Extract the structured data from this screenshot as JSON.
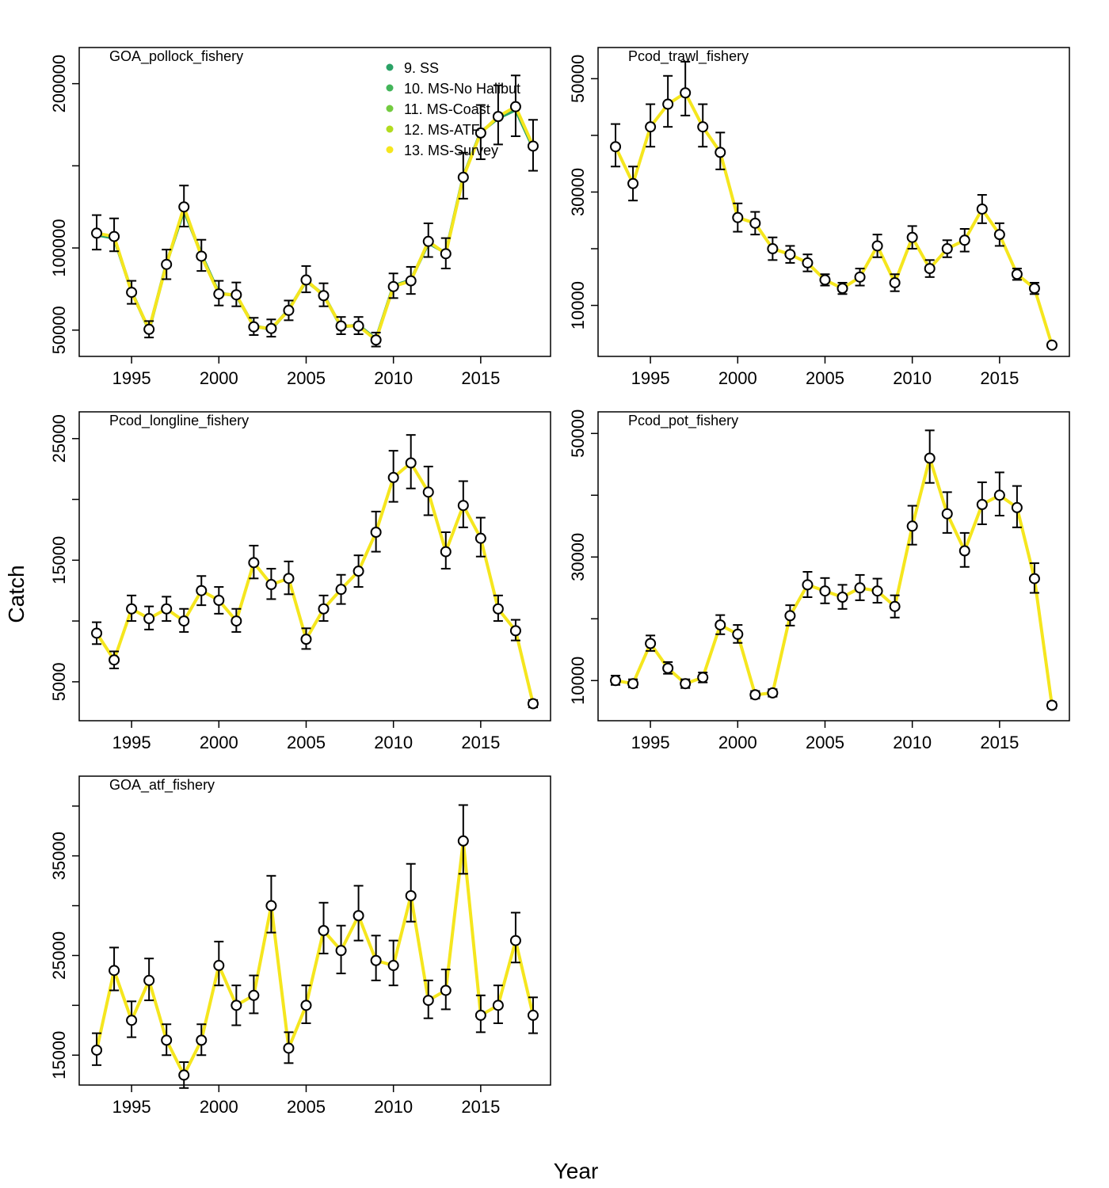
{
  "figure": {
    "xlabel": "Year",
    "ylabel": "Catch"
  },
  "colors": {
    "observed_fill": "#ffffff",
    "observed_stroke": "#000000",
    "error_bar": "#000000",
    "frame": "#000000"
  },
  "legend": {
    "placement": "top-right of first panel",
    "entries": [
      {
        "label": "9. SS",
        "color": "#2AA266"
      },
      {
        "label": "10. MS-No Halibut",
        "color": "#43B55A"
      },
      {
        "label": "11. MS-Coast",
        "color": "#73CB3F"
      },
      {
        "label": "12. MS-ATF",
        "color": "#B2DB1F"
      },
      {
        "label": "13. MS-Survey",
        "color": "#F5E61E"
      }
    ]
  },
  "chart_data": [
    {
      "type": "line",
      "title": "GOA_pollock_fishery",
      "x": [
        1993,
        1994,
        1995,
        1996,
        1997,
        1998,
        1999,
        2000,
        2001,
        2002,
        2003,
        2004,
        2005,
        2006,
        2007,
        2008,
        2009,
        2010,
        2011,
        2012,
        2013,
        2014,
        2015,
        2016,
        2017,
        2018
      ],
      "observed": [
        109000,
        107000,
        73000,
        50500,
        90000,
        125000,
        95000,
        72000,
        71500,
        52000,
        51000,
        62000,
        80500,
        71000,
        52500,
        52500,
        44000,
        76500,
        80000,
        104000,
        96500,
        143000,
        170000,
        180000,
        186000,
        162000
      ],
      "lower": [
        99000,
        98000,
        66000,
        45500,
        81000,
        113000,
        86000,
        65000,
        64500,
        47000,
        46000,
        56000,
        73000,
        64500,
        47500,
        47500,
        40000,
        69500,
        72000,
        94500,
        87500,
        130000,
        154000,
        163000,
        168000,
        147000
      ],
      "upper": [
        120000,
        118000,
        80000,
        55500,
        99000,
        138000,
        105000,
        80000,
        79000,
        57500,
        56500,
        68000,
        89000,
        78500,
        58000,
        58000,
        48500,
        84500,
        88500,
        115000,
        106000,
        158000,
        187000,
        199000,
        205000,
        178000
      ],
      "series": [
        {
          "name": "9. SS",
          "values": [
            108000,
            106000,
            73500,
            50000,
            90500,
            123000,
            96000,
            72500,
            71000,
            52500,
            50500,
            62500,
            80000,
            71500,
            52000,
            53000,
            44500,
            77000,
            80500,
            103000,
            97000,
            143500,
            170500,
            179000,
            184000,
            161000
          ]
        },
        {
          "name": "13. MS-Survey",
          "values": [
            109000,
            107000,
            73000,
            50500,
            90000,
            125000,
            95000,
            72000,
            71500,
            52000,
            51000,
            62000,
            80500,
            71000,
            52500,
            52500,
            44000,
            76500,
            80000,
            104000,
            96500,
            143000,
            170000,
            180000,
            186000,
            162000
          ]
        }
      ],
      "xlim": [
        1992,
        2019
      ],
      "ylim": [
        34000,
        222000
      ],
      "yticks": [
        50000,
        100000,
        150000,
        200000
      ],
      "ytick_labels": [
        "50000",
        "100000",
        "",
        "200000"
      ]
    },
    {
      "type": "line",
      "title": "Pcod_trawl_fishery",
      "x": [
        1993,
        1994,
        1995,
        1996,
        1997,
        1998,
        1999,
        2000,
        2001,
        2002,
        2003,
        2004,
        2005,
        2006,
        2007,
        2008,
        2009,
        2010,
        2011,
        2012,
        2013,
        2014,
        2015,
        2016,
        2017,
        2018
      ],
      "observed": [
        38000,
        31500,
        41500,
        45500,
        47500,
        41500,
        37000,
        25500,
        24500,
        20000,
        19000,
        17500,
        14500,
        13000,
        15000,
        20500,
        14000,
        22000,
        16500,
        20000,
        21500,
        27000,
        22500,
        15500,
        13000,
        3000
      ],
      "lower": [
        34500,
        28500,
        38000,
        41500,
        43500,
        38000,
        34000,
        23000,
        22500,
        18000,
        17500,
        16000,
        13500,
        12000,
        13500,
        18500,
        12500,
        20000,
        15000,
        18500,
        19500,
        24500,
        20500,
        14500,
        12000,
        2800
      ],
      "upper": [
        42000,
        34500,
        45500,
        50500,
        53000,
        45500,
        40500,
        28000,
        26500,
        22000,
        20500,
        19000,
        15500,
        14000,
        16500,
        22500,
        15500,
        24000,
        18000,
        21500,
        23500,
        29500,
        24500,
        16500,
        14000,
        3200
      ],
      "series": [
        {
          "name": "13. MS-Survey",
          "values": [
            38000,
            31500,
            41500,
            45500,
            47500,
            41500,
            37000,
            25500,
            24500,
            20000,
            19000,
            17500,
            14500,
            13000,
            15000,
            20500,
            14000,
            22000,
            16500,
            20000,
            21500,
            27000,
            22500,
            15500,
            13000,
            3000
          ]
        }
      ],
      "xlim": [
        1992,
        2019
      ],
      "ylim": [
        1000,
        55500
      ],
      "yticks": [
        10000,
        20000,
        30000,
        40000,
        50000
      ],
      "ytick_labels": [
        "10000",
        "",
        "30000",
        "",
        "50000"
      ]
    },
    {
      "type": "line",
      "title": "Pcod_longline_fishery",
      "x": [
        1993,
        1994,
        1995,
        1996,
        1997,
        1998,
        1999,
        2000,
        2001,
        2002,
        2003,
        2004,
        2005,
        2006,
        2007,
        2008,
        2009,
        2010,
        2011,
        2012,
        2013,
        2014,
        2015,
        2016,
        2017,
        2018
      ],
      "observed": [
        9000,
        6800,
        11000,
        10200,
        11000,
        10000,
        12500,
        11700,
        10000,
        14800,
        13000,
        13500,
        8500,
        11000,
        12600,
        14100,
        17300,
        21800,
        23000,
        20600,
        15700,
        19500,
        16800,
        11000,
        9200,
        3200
      ],
      "lower": [
        8100,
        6100,
        10000,
        9300,
        10000,
        9100,
        11300,
        10600,
        9100,
        13500,
        11800,
        12200,
        7700,
        10000,
        11400,
        12800,
        15700,
        19800,
        20900,
        18700,
        14300,
        17700,
        15300,
        10000,
        8400,
        2900
      ],
      "upper": [
        9900,
        7500,
        12100,
        11200,
        12000,
        11000,
        13700,
        12800,
        11000,
        16200,
        14300,
        14900,
        9400,
        12100,
        13800,
        15400,
        19000,
        24000,
        25300,
        22700,
        17300,
        21500,
        18500,
        12100,
        10100,
        3500
      ],
      "series": [
        {
          "name": "13. MS-Survey",
          "values": [
            9000,
            6800,
            11000,
            10200,
            11000,
            10000,
            12500,
            11700,
            10000,
            14800,
            13000,
            13500,
            8500,
            11000,
            12600,
            14100,
            17300,
            21800,
            23000,
            20600,
            15700,
            19500,
            16800,
            11000,
            9200,
            3200
          ]
        }
      ],
      "xlim": [
        1992,
        2019
      ],
      "ylim": [
        1800,
        27200
      ],
      "yticks": [
        5000,
        10000,
        15000,
        20000,
        25000
      ],
      "ytick_labels": [
        "5000",
        "",
        "15000",
        "",
        "25000"
      ]
    },
    {
      "type": "line",
      "title": "Pcod_pot_fishery",
      "x": [
        1993,
        1994,
        1995,
        1996,
        1997,
        1998,
        1999,
        2000,
        2001,
        2002,
        2003,
        2004,
        2005,
        2006,
        2007,
        2008,
        2009,
        2010,
        2011,
        2012,
        2013,
        2014,
        2015,
        2016,
        2017,
        2018
      ],
      "observed": [
        10000,
        9500,
        16000,
        12000,
        9500,
        10500,
        19000,
        17500,
        7700,
        8000,
        20500,
        25500,
        24500,
        23500,
        25000,
        24500,
        22000,
        35000,
        46000,
        37000,
        31000,
        38500,
        40000,
        38000,
        26500,
        6000
      ],
      "lower": [
        9300,
        8900,
        14800,
        11100,
        8800,
        9700,
        17500,
        16100,
        7100,
        7400,
        18900,
        23500,
        22500,
        21600,
        23000,
        22600,
        20200,
        32000,
        42000,
        33900,
        28400,
        35300,
        36700,
        34800,
        24200,
        5500
      ],
      "upper": [
        10800,
        10200,
        17300,
        13000,
        10200,
        11300,
        20600,
        19000,
        8300,
        8600,
        22200,
        27600,
        26600,
        25500,
        27100,
        26500,
        23800,
        38300,
        50500,
        40500,
        33900,
        42100,
        43700,
        41500,
        29000,
        6500
      ],
      "series": [
        {
          "name": "13. MS-Survey",
          "values": [
            10000,
            9500,
            16000,
            12000,
            9500,
            10500,
            19000,
            17500,
            7700,
            8000,
            20500,
            25500,
            24500,
            23500,
            25000,
            24500,
            22000,
            35000,
            46000,
            37000,
            31000,
            38500,
            40000,
            38000,
            26500,
            6000
          ]
        }
      ],
      "xlim": [
        1992,
        2019
      ],
      "ylim": [
        3500,
        53500
      ],
      "yticks": [
        10000,
        20000,
        30000,
        40000,
        50000
      ],
      "ytick_labels": [
        "10000",
        "",
        "30000",
        "",
        "50000"
      ]
    },
    {
      "type": "line",
      "title": "GOA_atf_fishery",
      "x": [
        1993,
        1994,
        1995,
        1996,
        1997,
        1998,
        1999,
        2000,
        2001,
        2002,
        2003,
        2004,
        2005,
        2006,
        2007,
        2008,
        2009,
        2010,
        2011,
        2012,
        2013,
        2014,
        2015,
        2016,
        2017,
        2018
      ],
      "observed": [
        15500,
        23500,
        18500,
        22500,
        16500,
        13000,
        16500,
        24000,
        20000,
        21000,
        30000,
        15700,
        20000,
        27500,
        25500,
        29000,
        24500,
        24000,
        31000,
        20500,
        21500,
        36500,
        19000,
        20000,
        26500,
        19000
      ],
      "lower": [
        14000,
        21500,
        16800,
        20500,
        15000,
        11700,
        15000,
        22000,
        18000,
        19200,
        27300,
        14200,
        18200,
        25200,
        23200,
        26500,
        22500,
        22000,
        28400,
        18700,
        19600,
        33200,
        17300,
        18200,
        24300,
        17200
      ],
      "upper": [
        17200,
        25800,
        20400,
        24700,
        18100,
        14300,
        18100,
        26400,
        22000,
        23000,
        33000,
        17300,
        22000,
        30300,
        28000,
        32000,
        27000,
        26500,
        34200,
        22500,
        23600,
        40100,
        21000,
        22000,
        29300,
        20800
      ],
      "series": [
        {
          "name": "13. MS-Survey",
          "values": [
            15500,
            23500,
            18500,
            22500,
            16500,
            13000,
            16500,
            24000,
            20000,
            21000,
            30000,
            15700,
            20000,
            27500,
            25500,
            29000,
            24500,
            24000,
            31000,
            20500,
            21500,
            36500,
            19000,
            20000,
            26500,
            19000
          ]
        }
      ],
      "xlim": [
        1992,
        2019
      ],
      "ylim": [
        12000,
        43000
      ],
      "yticks": [
        15000,
        20000,
        25000,
        30000,
        35000,
        40000
      ],
      "ytick_labels": [
        "15000",
        "",
        "25000",
        "",
        "35000",
        ""
      ]
    }
  ]
}
